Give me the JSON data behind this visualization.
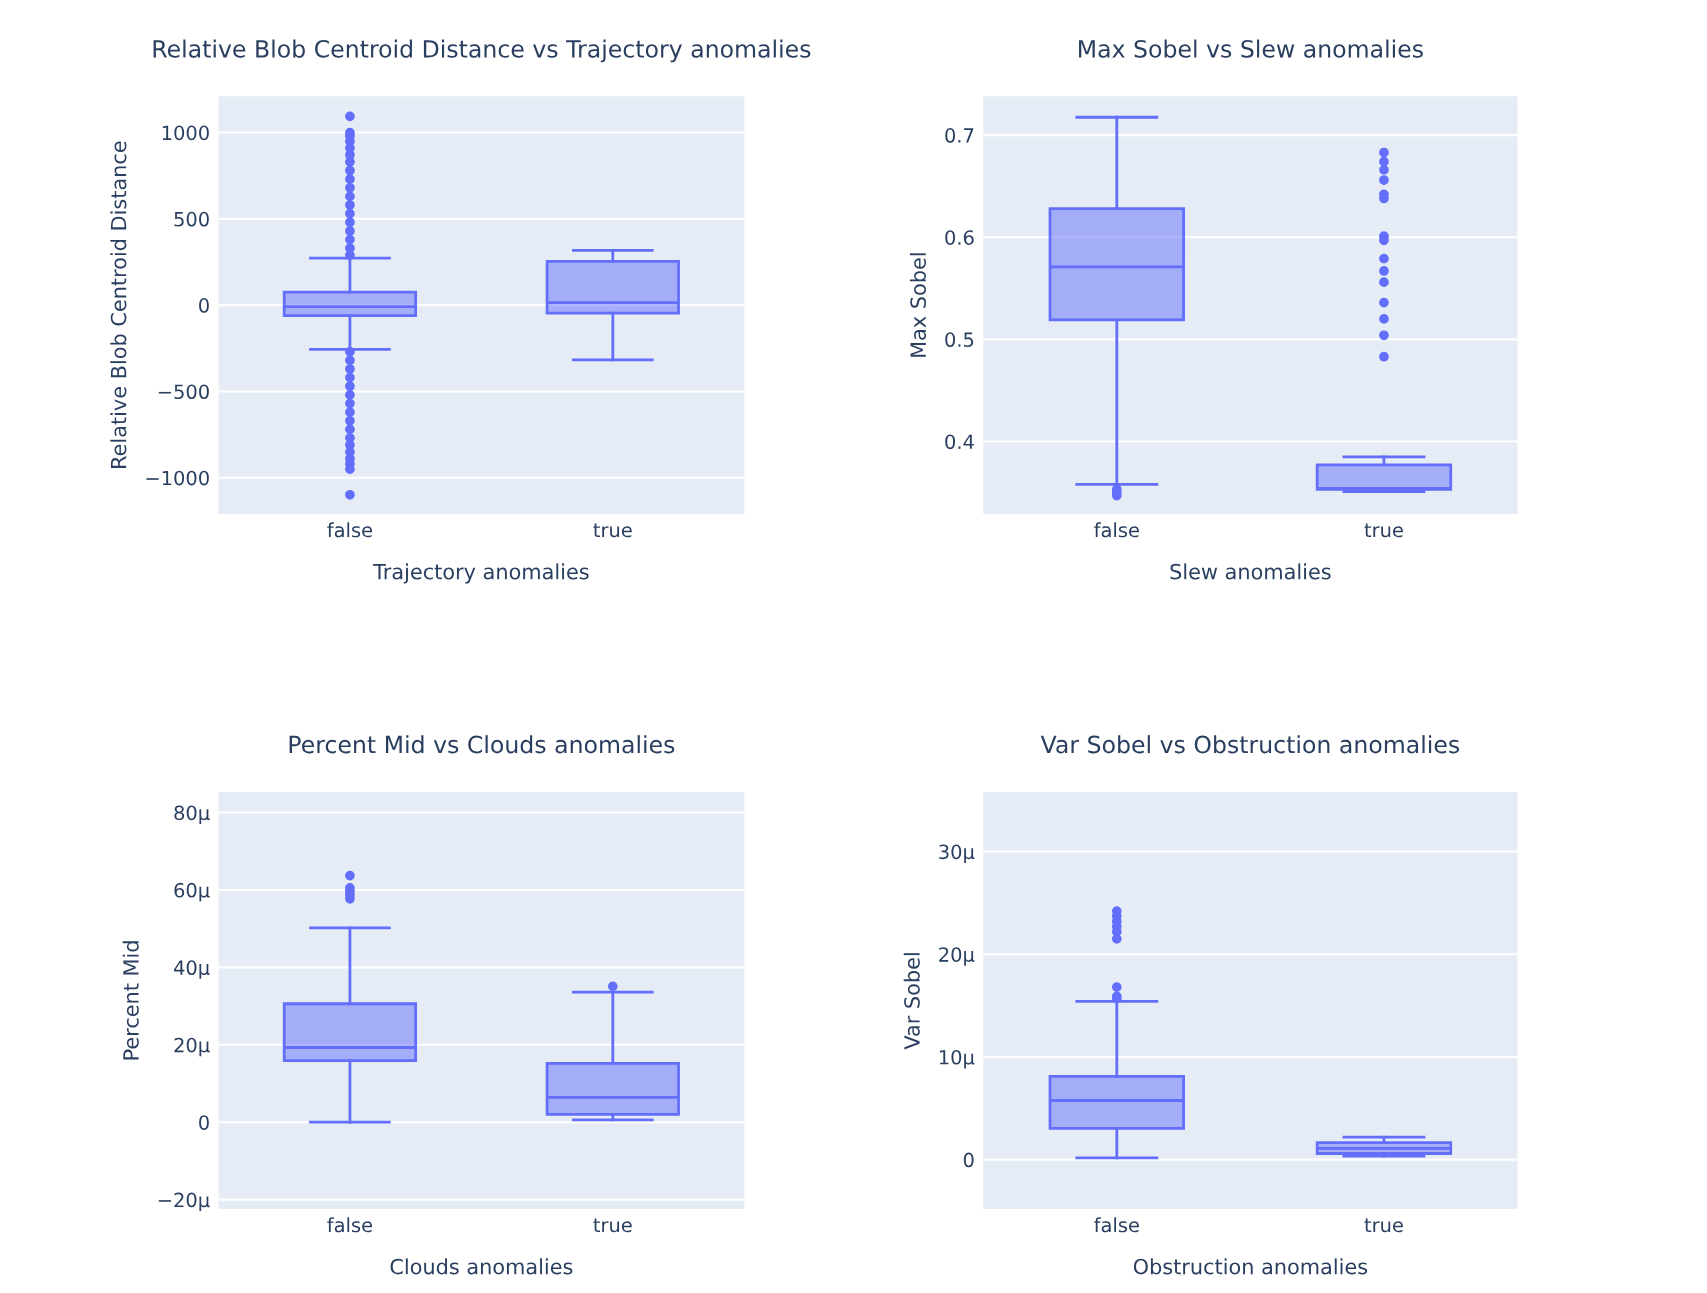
{
  "chart_data": [
    {
      "type": "box",
      "title": "Relative Blob Centroid Distance vs Trajectory anomalies",
      "xlabel": "Trajectory anomalies",
      "ylabel": "Relative Blob Centroid Distance",
      "categories": [
        "false",
        "true"
      ],
      "color": "#636efa",
      "grid": "y",
      "ylim": [
        -1210,
        1210
      ],
      "yticks": [
        {
          "value": -1000,
          "label": "−1000"
        },
        {
          "value": -500,
          "label": "−500"
        },
        0,
        500,
        1000
      ],
      "boxes": [
        {
          "low": -256,
          "q1": -61,
          "median": -8,
          "q3": 76,
          "high": 272,
          "outliers": [
            290,
            330,
            380,
            430,
            480,
            530,
            580,
            630,
            680,
            730,
            780,
            830,
            870,
            910,
            950,
            980,
            1000,
            1094,
            -270,
            -320,
            -370,
            -420,
            -470,
            -520,
            -570,
            -620,
            -670,
            -720,
            -770,
            -810,
            -850,
            -890,
            -920,
            -950,
            -1099
          ]
        },
        {
          "low": -317,
          "q1": -46,
          "median": 15,
          "q3": 254,
          "high": 317
        }
      ]
    },
    {
      "type": "box",
      "title": "Max Sobel vs Slew anomalies",
      "xlabel": "Slew anomalies",
      "ylabel": "Max Sobel",
      "categories": [
        "false",
        "true"
      ],
      "color": "#636efa",
      "grid": "y",
      "ylim": [
        0.329,
        0.738
      ],
      "yticks": [
        0.4,
        0.5,
        0.6,
        0.7
      ],
      "boxes": [
        {
          "low": 0.358,
          "q1": 0.519,
          "median": 0.571,
          "q3": 0.628,
          "high": 0.7175,
          "outliers": [
            0.353,
            0.35,
            0.347
          ]
        },
        {
          "low": 0.351,
          "q1": 0.353,
          "median": 0.354,
          "q3": 0.377,
          "high": 0.385,
          "outliers": [
            0.683,
            0.674,
            0.666,
            0.656,
            0.642,
            0.638,
            0.601,
            0.597,
            0.579,
            0.567,
            0.556,
            0.536,
            0.52,
            0.504,
            0.483
          ]
        }
      ]
    },
    {
      "type": "box",
      "title": "Percent Mid vs Clouds anomalies",
      "xlabel": "Clouds anomalies",
      "ylabel": "Percent Mid",
      "categories": [
        "false",
        "true"
      ],
      "color": "#636efa",
      "grid": "y",
      "ylim": [
        -22.4,
        85.3
      ],
      "yticks": [
        {
          "value": -20,
          "label": "−20µ"
        },
        0,
        {
          "value": 20,
          "label": "20µ"
        },
        {
          "value": 40,
          "label": "40µ"
        },
        {
          "value": 60,
          "label": "60µ"
        },
        {
          "value": 80,
          "label": "80µ"
        }
      ],
      "boxes": [
        {
          "low": 0,
          "q1": 15.9,
          "median": 19.3,
          "q3": 30.6,
          "high": 50.2,
          "outliers": [
            63.7,
            60.5,
            59.6,
            58.7,
            57.7
          ]
        },
        {
          "low": 0.6,
          "q1": 2.0,
          "median": 6.4,
          "q3": 15.2,
          "high": 33.6,
          "outliers": [
            35.1
          ]
        }
      ]
    },
    {
      "type": "box",
      "title": "Var Sobel vs Obstruction anomalies",
      "xlabel": "Obstruction anomalies",
      "ylabel": "Var Sobel",
      "categories": [
        "false",
        "true"
      ],
      "color": "#636efa",
      "grid": "y",
      "ylim": [
        -4.8,
        35.8
      ],
      "yticks": [
        0,
        {
          "value": 10,
          "label": "10µ"
        },
        {
          "value": 20,
          "label": "20µ"
        },
        {
          "value": 30,
          "label": "30µ"
        }
      ],
      "boxes": [
        {
          "low": 0.17,
          "q1": 3.05,
          "median": 5.76,
          "q3": 8.1,
          "high": 15.4,
          "outliers": [
            16.8,
            15.9,
            15.7,
            24.2,
            23.7,
            23.2,
            22.7,
            22.2,
            21.5
          ]
        },
        {
          "low": 0.34,
          "q1": 0.6,
          "median": 1.1,
          "q3": 1.65,
          "high": 2.2
        }
      ]
    }
  ]
}
